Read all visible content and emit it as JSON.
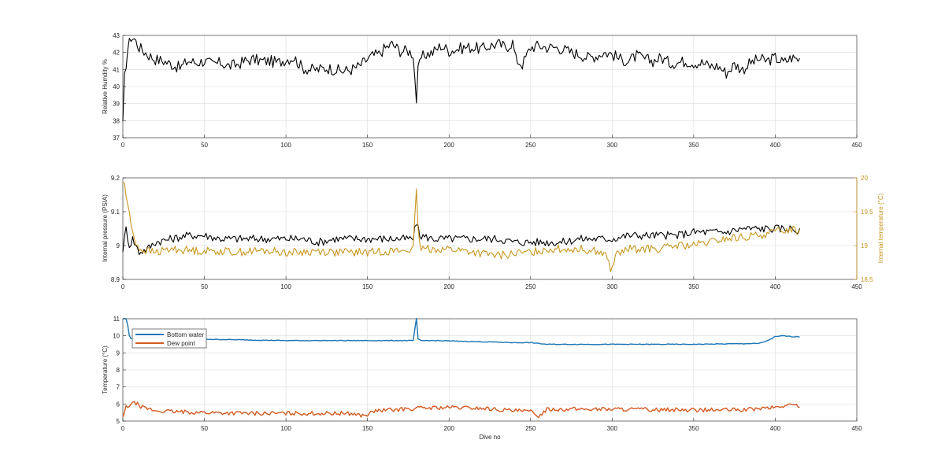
{
  "colors": {
    "black": "#000000",
    "gold": "#c8961e",
    "blue": "#1a74b5",
    "orange": "#d35a21",
    "axis": "#262626",
    "grid": "#dcdcdc"
  },
  "chart_data": [
    {
      "type": "line",
      "ylabel": "Relative Humdity %",
      "xlim": [
        0,
        450
      ],
      "ylim": [
        37,
        43
      ],
      "xticks": [
        0,
        50,
        100,
        150,
        200,
        250,
        300,
        350,
        400,
        450
      ],
      "yticks": [
        37,
        38,
        39,
        40,
        41,
        42,
        43
      ],
      "grid": true,
      "series": [
        {
          "color": "#000000",
          "axis": "left",
          "noise": 0.35,
          "x": [
            0,
            1,
            3,
            5,
            7,
            10,
            15,
            20,
            25,
            30,
            35,
            40,
            45,
            50,
            55,
            60,
            65,
            70,
            75,
            80,
            85,
            90,
            95,
            100,
            105,
            110,
            115,
            120,
            125,
            130,
            135,
            140,
            145,
            150,
            153,
            157,
            160,
            165,
            170,
            175,
            178,
            180,
            181,
            183,
            186,
            190,
            195,
            200,
            205,
            210,
            215,
            220,
            225,
            230,
            235,
            239,
            241,
            245,
            250,
            255,
            260,
            265,
            270,
            275,
            280,
            285,
            290,
            295,
            300,
            305,
            310,
            315,
            320,
            325,
            330,
            335,
            340,
            345,
            350,
            355,
            360,
            365,
            370,
            375,
            380,
            385,
            390,
            395,
            400,
            405,
            410,
            415
          ],
          "y": [
            37.7,
            40.5,
            42.2,
            42.9,
            42.8,
            42.3,
            41.9,
            41.6,
            41.5,
            41.3,
            41.1,
            41.5,
            41.4,
            41.5,
            41.3,
            41.4,
            41.2,
            41.3,
            41.5,
            41.6,
            41.5,
            41.5,
            41.4,
            41.6,
            41.7,
            41.1,
            41.0,
            41.0,
            41.1,
            41.0,
            40.9,
            41.0,
            41.2,
            41.6,
            41.8,
            41.9,
            42.2,
            42.5,
            42.1,
            42.1,
            41.9,
            39.2,
            40.9,
            41.7,
            41.9,
            42.0,
            42.4,
            42.1,
            42.2,
            42.3,
            42.3,
            42.2,
            42.4,
            42.5,
            42.3,
            42.6,
            41.6,
            41.3,
            42.3,
            42.4,
            42.3,
            42.3,
            42.2,
            42.0,
            41.9,
            41.7,
            41.8,
            42.0,
            41.9,
            41.6,
            41.5,
            41.8,
            41.6,
            41.5,
            41.7,
            41.4,
            41.4,
            41.5,
            41.4,
            41.4,
            41.2,
            41.2,
            40.8,
            41.3,
            41.0,
            41.4,
            41.6,
            41.5,
            41.7,
            41.4,
            41.7,
            41.6
          ]
        }
      ]
    },
    {
      "type": "line",
      "ylabel": "Internal pressure (PSIA)",
      "ylabel_right": "Internal temperature (°C)",
      "xlim": [
        0,
        450
      ],
      "ylim": [
        8.9,
        9.2
      ],
      "ylim_right": [
        18.5,
        20
      ],
      "xticks": [
        0,
        50,
        100,
        150,
        200,
        250,
        300,
        350,
        400,
        450
      ],
      "yticks": [
        8.9,
        9,
        9.1,
        9.2
      ],
      "yticks_right": [
        18.5,
        19,
        19.5,
        20
      ],
      "grid": true,
      "series": [
        {
          "color": "#000000",
          "axis": "left",
          "noise": 0.012,
          "x": [
            0,
            2,
            4,
            6,
            10,
            15,
            20,
            30,
            40,
            50,
            60,
            70,
            80,
            90,
            100,
            110,
            120,
            130,
            140,
            150,
            160,
            170,
            178,
            180,
            182,
            190,
            200,
            210,
            220,
            230,
            240,
            250,
            260,
            270,
            280,
            290,
            300,
            310,
            320,
            330,
            340,
            350,
            360,
            370,
            380,
            390,
            400,
            405,
            410,
            415
          ],
          "y": [
            8.99,
            9.05,
            9.0,
            9.02,
            8.98,
            8.99,
            9.01,
            9.02,
            9.03,
            9.03,
            9.02,
            9.02,
            9.02,
            9.02,
            9.02,
            9.02,
            9.01,
            9.02,
            9.02,
            9.02,
            9.02,
            9.02,
            9.02,
            9.07,
            9.03,
            9.02,
            9.02,
            9.02,
            9.02,
            9.02,
            9.01,
            9.01,
            9.01,
            9.01,
            9.02,
            9.02,
            9.02,
            9.03,
            9.03,
            9.03,
            9.03,
            9.04,
            9.04,
            9.04,
            9.05,
            9.05,
            9.05,
            9.05,
            9.05,
            9.04
          ]
        },
        {
          "color": "#c8961e",
          "axis": "right",
          "noise": 0.06,
          "x": [
            0,
            1,
            3,
            5,
            8,
            10,
            15,
            20,
            30,
            40,
            50,
            60,
            70,
            80,
            90,
            100,
            110,
            120,
            130,
            140,
            150,
            160,
            170,
            178,
            180,
            181,
            183,
            190,
            200,
            210,
            220,
            230,
            240,
            250,
            260,
            270,
            280,
            290,
            297,
            299,
            302,
            310,
            320,
            330,
            340,
            350,
            360,
            370,
            380,
            390,
            400,
            410,
            415
          ],
          "y": [
            19.95,
            19.9,
            19.6,
            19.3,
            19.05,
            18.95,
            18.92,
            18.9,
            18.95,
            18.93,
            18.92,
            18.92,
            18.9,
            18.92,
            18.92,
            18.9,
            18.9,
            18.92,
            18.9,
            18.9,
            18.9,
            18.92,
            18.92,
            18.95,
            19.8,
            19.2,
            18.95,
            18.95,
            18.95,
            18.92,
            18.88,
            18.85,
            18.88,
            18.9,
            18.95,
            18.95,
            18.95,
            18.92,
            18.85,
            18.6,
            18.85,
            18.95,
            18.95,
            18.95,
            19.0,
            19.0,
            19.05,
            19.1,
            19.12,
            19.15,
            19.2,
            19.25,
            19.2
          ]
        }
      ]
    },
    {
      "type": "line",
      "ylabel": "Temperature (°C)",
      "xlabel": "Dive no",
      "xlim": [
        0,
        450
      ],
      "ylim": [
        5,
        11
      ],
      "xticks": [
        0,
        50,
        100,
        150,
        200,
        250,
        300,
        350,
        400,
        450
      ],
      "yticks": [
        5,
        6,
        7,
        8,
        9,
        10,
        11
      ],
      "grid": true,
      "legend": "top-left",
      "series": [
        {
          "name": "Bottom water",
          "color": "#1a74b5",
          "axis": "left",
          "noise": 0.02,
          "x": [
            0,
            2,
            3,
            4,
            5,
            8,
            12,
            20,
            30,
            50,
            80,
            100,
            120,
            150,
            178,
            180,
            181,
            183,
            190,
            200,
            220,
            240,
            250,
            255,
            260,
            300,
            350,
            390,
            395,
            400,
            405,
            410,
            415
          ],
          "y": [
            11.0,
            11.0,
            10.6,
            10.0,
            9.85,
            9.9,
            9.85,
            9.85,
            9.85,
            9.8,
            9.75,
            9.72,
            9.72,
            9.72,
            9.72,
            11.0,
            9.8,
            9.72,
            9.72,
            9.7,
            9.65,
            9.6,
            9.6,
            9.55,
            9.5,
            9.5,
            9.5,
            9.55,
            9.7,
            9.95,
            10.0,
            9.95,
            9.95
          ]
        },
        {
          "name": "Dew point",
          "color": "#d35a21",
          "axis": "left",
          "noise": 0.12,
          "x": [
            0,
            2,
            5,
            8,
            12,
            20,
            30,
            50,
            80,
            100,
            120,
            140,
            148,
            155,
            165,
            180,
            200,
            220,
            240,
            250,
            255,
            260,
            300,
            350,
            380,
            400,
            410,
            415
          ],
          "y": [
            5.2,
            5.8,
            6.0,
            6.05,
            5.8,
            5.6,
            5.55,
            5.5,
            5.45,
            5.45,
            5.45,
            5.45,
            5.3,
            5.6,
            5.65,
            5.75,
            5.8,
            5.75,
            5.6,
            5.55,
            5.3,
            5.7,
            5.7,
            5.65,
            5.65,
            5.8,
            5.95,
            5.9
          ]
        }
      ]
    }
  ]
}
